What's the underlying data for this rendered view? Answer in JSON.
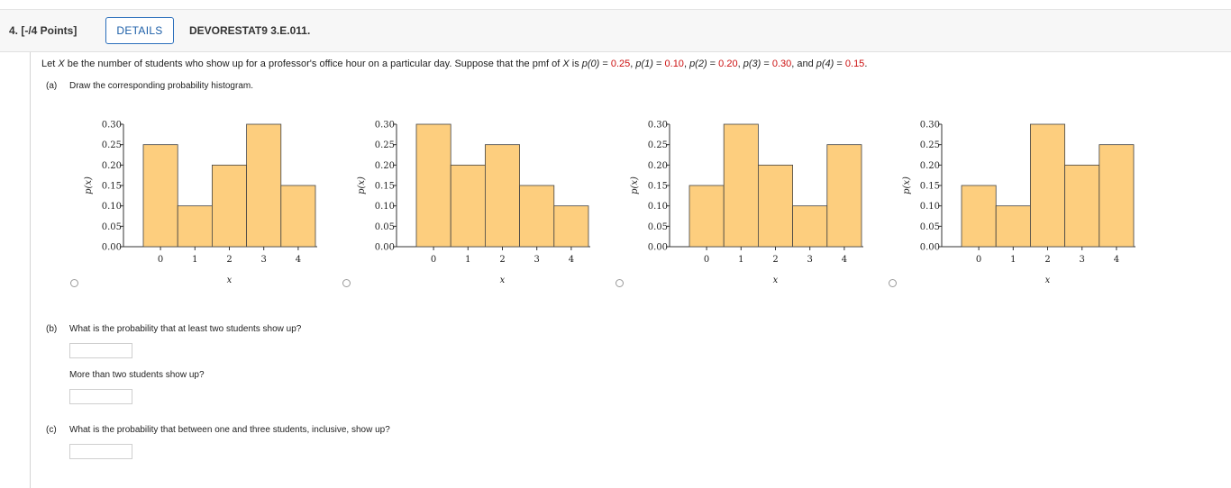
{
  "header": {
    "question_number": "4. [-/4 Points]",
    "details_label": "DETAILS",
    "question_code": "DEVORESTAT9 3.E.011."
  },
  "stem": {
    "p1": "Let ",
    "p2": " be the number of students who show up for a professor's office hour on a particular day. Suppose that the pmf of ",
    "p3": " is ",
    "p4": ", and ",
    "p5": ".",
    "var": "X",
    "pmf": [
      {
        "label": "p(0)",
        "value": "0.25"
      },
      {
        "label": "p(1)",
        "value": "0.10"
      },
      {
        "label": "p(2)",
        "value": "0.20"
      },
      {
        "label": "p(3)",
        "value": "0.30"
      },
      {
        "label": "p(4)",
        "value": "0.15"
      }
    ]
  },
  "part_a": {
    "label": "(a)",
    "text": "Draw the corresponding probability histogram."
  },
  "part_b": {
    "label": "(b)",
    "text": "What is the probability that at least two students show up?",
    "sub_text": "More than two students show up?",
    "answer1": "",
    "answer2": ""
  },
  "part_c": {
    "label": "(c)",
    "text": "What is the probability that between one and three students, inclusive, show up?",
    "answer": ""
  },
  "chart_common": {
    "bar_color": "#fdce7e",
    "bar_stroke": "#444444",
    "ylabel": "p(x)",
    "xlabel": "x",
    "yticks": [
      "0.00",
      "0.05",
      "0.10",
      "0.15",
      "0.20",
      "0.25",
      "0.30"
    ]
  },
  "chart_data": [
    {
      "type": "bar",
      "categories": [
        "0",
        "1",
        "2",
        "3",
        "4"
      ],
      "values": [
        0.25,
        0.1,
        0.2,
        0.3,
        0.15
      ],
      "ylim": [
        0,
        0.3
      ],
      "xlabel": "x",
      "ylabel": "p(x)",
      "selected": false
    },
    {
      "type": "bar",
      "categories": [
        "0",
        "1",
        "2",
        "3",
        "4"
      ],
      "values": [
        0.3,
        0.2,
        0.25,
        0.15,
        0.1
      ],
      "ylim": [
        0,
        0.3
      ],
      "xlabel": "x",
      "ylabel": "p(x)",
      "selected": false
    },
    {
      "type": "bar",
      "categories": [
        "0",
        "1",
        "2",
        "3",
        "4"
      ],
      "values": [
        0.15,
        0.3,
        0.2,
        0.1,
        0.25
      ],
      "ylim": [
        0,
        0.3
      ],
      "xlabel": "x",
      "ylabel": "p(x)",
      "selected": false
    },
    {
      "type": "bar",
      "categories": [
        "0",
        "1",
        "2",
        "3",
        "4"
      ],
      "values": [
        0.15,
        0.1,
        0.3,
        0.2,
        0.25
      ],
      "ylim": [
        0,
        0.3
      ],
      "xlabel": "x",
      "ylabel": "p(x)",
      "selected": false
    }
  ]
}
